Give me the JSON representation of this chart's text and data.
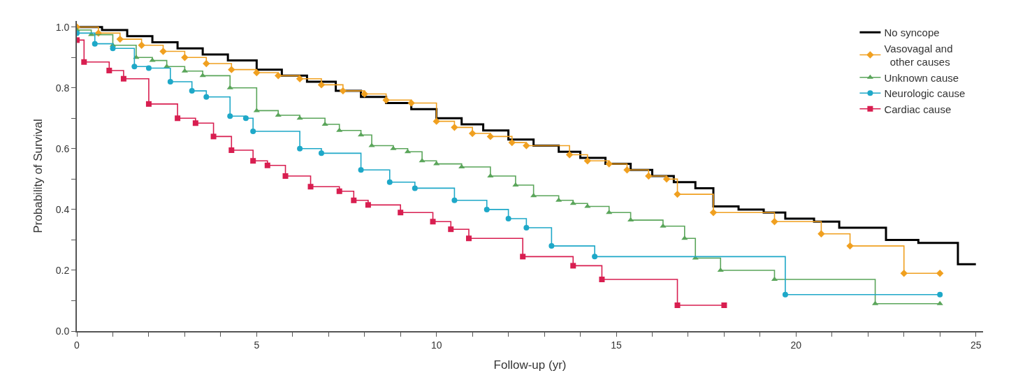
{
  "chart_data": {
    "type": "step",
    "xlabel": "Follow-up (yr)",
    "ylabel": "Probability of Survival",
    "xlim": [
      0,
      25.2
    ],
    "ylim": [
      0,
      1.02
    ],
    "xticks": [
      0,
      {
        "value": 1,
        "label": null
      },
      {
        "value": 2,
        "label": null
      },
      {
        "value": 3,
        "label": null
      },
      {
        "value": 4,
        "label": null
      },
      5,
      {
        "value": 6,
        "label": null
      },
      {
        "value": 7,
        "label": null
      },
      {
        "value": 8,
        "label": null
      },
      {
        "value": 9,
        "label": null
      },
      10,
      {
        "value": 11,
        "label": null
      },
      {
        "value": 12,
        "label": null
      },
      {
        "value": 13,
        "label": null
      },
      {
        "value": 14,
        "label": null
      },
      15,
      {
        "value": 16,
        "label": null
      },
      {
        "value": 17,
        "label": null
      },
      {
        "value": 18,
        "label": null
      },
      {
        "value": 19,
        "label": null
      },
      20,
      {
        "value": 21,
        "label": null
      },
      {
        "value": 22,
        "label": null
      },
      {
        "value": 23,
        "label": null
      },
      {
        "value": 24,
        "label": null
      },
      25
    ],
    "yticks": [
      {
        "value": 0,
        "label": "0.0"
      },
      {
        "value": 0.1,
        "label": null
      },
      {
        "value": 0.2,
        "label": "0.2"
      },
      {
        "value": 0.3,
        "label": null
      },
      {
        "value": 0.4,
        "label": "0.4"
      },
      {
        "value": 0.5,
        "label": null
      },
      {
        "value": 0.6,
        "label": "0.6"
      },
      {
        "value": 0.7,
        "label": null
      },
      {
        "value": 0.8,
        "label": "0.8"
      },
      {
        "value": 0.9,
        "label": null
      },
      {
        "value": 1.0,
        "label": "1.0"
      }
    ],
    "legend": "top right",
    "line_style": "solid",
    "series": [
      {
        "name": "No syncope",
        "color": "#000000",
        "marker": "none",
        "x": [
          0,
          0.7,
          1.4,
          2.1,
          2.8,
          3.5,
          4.2,
          5.0,
          5.7,
          6.4,
          7.2,
          7.9,
          8.6,
          9.3,
          10.0,
          10.7,
          11.3,
          12.0,
          12.7,
          13.4,
          14.0,
          14.7,
          15.4,
          16.0,
          16.6,
          17.2,
          17.7,
          18.4,
          19.1,
          19.7,
          20.5,
          21.2,
          22.5,
          23.4,
          24.5,
          25
        ],
        "values": [
          1.0,
          0.99,
          0.97,
          0.95,
          0.93,
          0.91,
          0.89,
          0.86,
          0.84,
          0.82,
          0.79,
          0.77,
          0.75,
          0.73,
          0.7,
          0.68,
          0.66,
          0.63,
          0.61,
          0.59,
          0.57,
          0.55,
          0.53,
          0.51,
          0.49,
          0.47,
          0.41,
          0.4,
          0.39,
          0.37,
          0.36,
          0.34,
          0.3,
          0.29,
          0.22,
          0.22
        ]
      },
      {
        "name": "Vasovagal and\n  other causes",
        "color": "#f0a020",
        "marker": "diamond",
        "x": [
          0,
          0.6,
          1.2,
          1.8,
          2.4,
          3.0,
          3.6,
          4.3,
          5.0,
          5.6,
          6.2,
          6.8,
          7.4,
          8.0,
          8.6,
          9.3,
          10.0,
          10.5,
          11.0,
          11.5,
          12.1,
          12.5,
          13.7,
          14.2,
          14.8,
          15.3,
          15.9,
          16.4,
          16.7,
          17.7,
          19.4,
          20.7,
          21.5,
          23.0,
          24.0
        ],
        "values": [
          1.0,
          0.98,
          0.96,
          0.94,
          0.92,
          0.9,
          0.88,
          0.86,
          0.85,
          0.84,
          0.83,
          0.81,
          0.79,
          0.78,
          0.76,
          0.75,
          0.69,
          0.67,
          0.65,
          0.64,
          0.62,
          0.61,
          0.58,
          0.56,
          0.55,
          0.53,
          0.51,
          0.5,
          0.45,
          0.39,
          0.36,
          0.32,
          0.28,
          0.19,
          0.19
        ]
      },
      {
        "name": "Unknown cause",
        "color": "#5aa55a",
        "marker": "triangle",
        "x": [
          0,
          0.4,
          1.0,
          1.65,
          2.1,
          2.5,
          3.0,
          3.5,
          4.26,
          5.0,
          5.6,
          6.2,
          6.9,
          7.3,
          7.9,
          8.2,
          8.8,
          9.2,
          9.6,
          10.0,
          10.7,
          11.5,
          12.2,
          12.7,
          13.4,
          13.8,
          14.2,
          14.8,
          15.4,
          16.3,
          16.9,
          17.2,
          17.9,
          19.4,
          22.2,
          24.0
        ],
        "values": [
          0.99,
          0.975,
          0.94,
          0.9,
          0.89,
          0.87,
          0.855,
          0.84,
          0.8,
          0.725,
          0.71,
          0.7,
          0.68,
          0.66,
          0.645,
          0.61,
          0.6,
          0.59,
          0.56,
          0.55,
          0.54,
          0.51,
          0.48,
          0.445,
          0.43,
          0.42,
          0.41,
          0.39,
          0.365,
          0.345,
          0.305,
          0.24,
          0.2,
          0.17,
          0.09,
          0.09
        ]
      },
      {
        "name": "Neurologic cause",
        "color": "#1ea8c8",
        "marker": "circle",
        "x": [
          0,
          0.5,
          1.0,
          1.6,
          2.0,
          2.6,
          3.2,
          3.6,
          4.26,
          4.7,
          4.9,
          6.2,
          6.8,
          7.9,
          8.7,
          9.4,
          10.5,
          11.4,
          12.0,
          12.5,
          13.2,
          14.4,
          19.7,
          24.0
        ],
        "values": [
          0.98,
          0.945,
          0.93,
          0.87,
          0.865,
          0.82,
          0.79,
          0.77,
          0.707,
          0.7,
          0.657,
          0.6,
          0.585,
          0.53,
          0.49,
          0.47,
          0.43,
          0.4,
          0.37,
          0.34,
          0.28,
          0.245,
          0.12,
          0.12
        ]
      },
      {
        "name": "Cardiac cause",
        "color": "#d81e50",
        "marker": "square",
        "x": [
          0,
          0.2,
          0.9,
          1.3,
          2.0,
          2.8,
          3.3,
          3.8,
          4.3,
          4.9,
          5.3,
          5.8,
          6.5,
          7.3,
          7.7,
          8.1,
          9.0,
          9.9,
          10.4,
          10.9,
          12.4,
          13.8,
          14.6,
          16.7,
          18.0
        ],
        "values": [
          0.957,
          0.885,
          0.857,
          0.83,
          0.747,
          0.7,
          0.684,
          0.64,
          0.595,
          0.56,
          0.545,
          0.51,
          0.475,
          0.46,
          0.43,
          0.415,
          0.39,
          0.36,
          0.335,
          0.305,
          0.245,
          0.215,
          0.17,
          0.085,
          0.085
        ]
      }
    ]
  }
}
